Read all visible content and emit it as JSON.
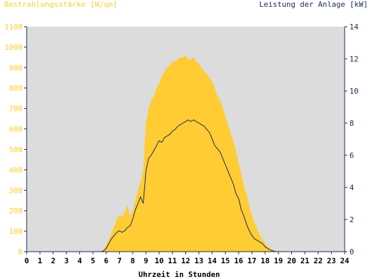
{
  "chart_data": {
    "type": "area",
    "left_title": "Bestrahlungsstärke [W/qm]",
    "right_title": "Leistung der Anlage [kW]",
    "xlabel": "Uhrzeit in Stunden",
    "x_ticks": [
      "0",
      "1",
      "2",
      "3",
      "4",
      "5",
      "6",
      "7",
      "8",
      "9",
      "10",
      "11",
      "12",
      "13",
      "14",
      "15",
      "16",
      "17",
      "18",
      "19",
      "20",
      "21",
      "22",
      "23",
      "24"
    ],
    "xlim": [
      0,
      24
    ],
    "y_left_ticks": [
      "0",
      "100",
      "200",
      "300",
      "400",
      "500",
      "600",
      "700",
      "800",
      "900",
      "1000",
      "1100"
    ],
    "y_left_lim": [
      0,
      1100
    ],
    "y_right_ticks": [
      "0",
      "2",
      "4",
      "6",
      "8",
      "10",
      "12",
      "14"
    ],
    "y_right_lim": [
      0,
      14
    ],
    "colors": {
      "plot_background": "#dcdcdc",
      "irradiance_fill": "#ffcc33",
      "power_line": "#1a2a5a",
      "left_axis_text": "#ffcc33",
      "right_axis_text": "#1a2a5a",
      "axis_line": "#1a2a5a",
      "x_axis_text": "#000000"
    },
    "series": [
      {
        "axis": "left",
        "style": "filled-area",
        "x": [
          5.6,
          5.8,
          6.0,
          6.2,
          6.4,
          6.6,
          6.8,
          7.0,
          7.2,
          7.4,
          7.6,
          7.8,
          8.0,
          8.2,
          8.4,
          8.6,
          8.8,
          9.0,
          9.2,
          9.4,
          9.6,
          9.8,
          10.0,
          10.2,
          10.4,
          10.6,
          10.8,
          11.0,
          11.2,
          11.4,
          11.6,
          11.8,
          12.0,
          12.2,
          12.4,
          12.6,
          12.8,
          13.0,
          13.2,
          13.4,
          13.6,
          13.8,
          14.0,
          14.2,
          14.4,
          14.6,
          14.8,
          15.0,
          15.2,
          15.4,
          15.6,
          15.8,
          16.0,
          16.2,
          16.4,
          16.6,
          16.8,
          17.0,
          17.2,
          17.4,
          17.6,
          17.8,
          18.0,
          18.2,
          18.4,
          18.6,
          18.8,
          19.0,
          19.1
        ],
        "values": [
          0,
          10,
          30,
          60,
          90,
          120,
          160,
          180,
          170,
          190,
          230,
          170,
          200,
          250,
          300,
          340,
          400,
          630,
          700,
          740,
          760,
          800,
          820,
          860,
          880,
          900,
          910,
          930,
          930,
          940,
          950,
          950,
          960,
          940,
          940,
          950,
          930,
          920,
          900,
          880,
          870,
          850,
          830,
          800,
          760,
          740,
          700,
          660,
          620,
          580,
          540,
          490,
          430,
          380,
          320,
          280,
          220,
          180,
          140,
          110,
          80,
          60,
          40,
          25,
          15,
          8,
          4,
          0,
          0
        ]
      },
      {
        "axis": "right",
        "style": "line",
        "x": [
          0,
          5.6,
          5.8,
          6.0,
          6.2,
          6.4,
          6.6,
          6.8,
          7.0,
          7.2,
          7.4,
          7.6,
          7.8,
          8.0,
          8.2,
          8.4,
          8.6,
          8.8,
          9.0,
          9.2,
          9.4,
          9.6,
          9.8,
          10.0,
          10.2,
          10.4,
          10.6,
          10.8,
          11.0,
          11.2,
          11.4,
          11.6,
          11.8,
          12.0,
          12.2,
          12.4,
          12.6,
          12.8,
          13.0,
          13.2,
          13.4,
          13.6,
          13.8,
          14.0,
          14.2,
          14.4,
          14.6,
          14.8,
          15.0,
          15.2,
          15.4,
          15.6,
          15.8,
          16.0,
          16.2,
          16.4,
          16.6,
          16.8,
          17.0,
          17.2,
          17.4,
          17.6,
          17.8,
          18.0,
          18.2,
          18.4,
          18.6,
          18.8,
          19.0,
          19.1,
          24
        ],
        "values": [
          0,
          0,
          0.05,
          0.2,
          0.5,
          0.8,
          1.0,
          1.2,
          1.3,
          1.2,
          1.3,
          1.5,
          1.6,
          2.0,
          2.6,
          3.0,
          3.4,
          3.0,
          5.0,
          5.8,
          6.0,
          6.3,
          6.6,
          6.9,
          6.8,
          7.1,
          7.2,
          7.3,
          7.5,
          7.6,
          7.8,
          7.9,
          8.0,
          8.1,
          8.2,
          8.1,
          8.2,
          8.1,
          8.0,
          7.9,
          7.8,
          7.6,
          7.4,
          7.0,
          6.6,
          6.4,
          6.2,
          5.8,
          5.4,
          5.0,
          4.6,
          4.2,
          3.6,
          3.3,
          2.6,
          2.2,
          1.7,
          1.3,
          1.0,
          0.8,
          0.7,
          0.6,
          0.5,
          0.3,
          0.2,
          0.1,
          0.05,
          0,
          0,
          0,
          0
        ]
      }
    ],
    "grid": false
  }
}
